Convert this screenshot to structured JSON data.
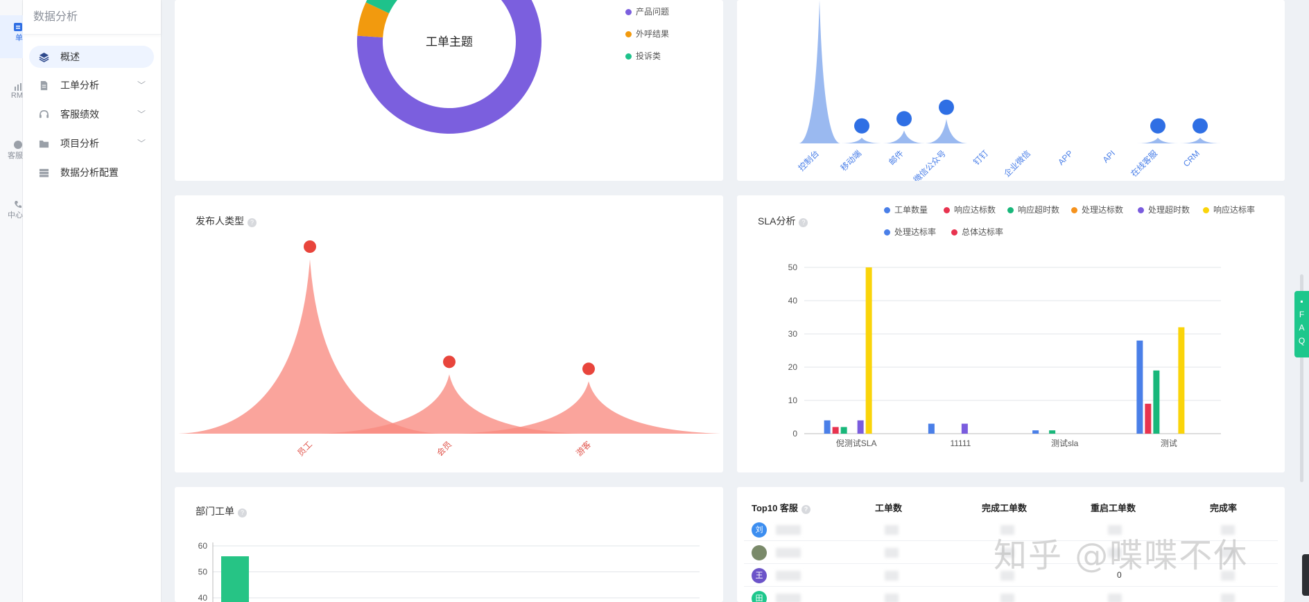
{
  "rail": {
    "items": [
      {
        "label": "单",
        "icon": "ticket-icon"
      },
      {
        "label": "RM",
        "icon": "crm-icon"
      },
      {
        "label": "客服",
        "icon": "chat-icon"
      },
      {
        "label": "中心",
        "icon": "call-center-icon"
      }
    ]
  },
  "sidebar": {
    "title": "数据分析",
    "items": [
      {
        "label": "概述"
      },
      {
        "label": "工单分析"
      },
      {
        "label": "客服绩效"
      },
      {
        "label": "项目分析"
      },
      {
        "label": "数据分析配置"
      }
    ]
  },
  "topic_card": {
    "center_label": "工单主题",
    "legend": [
      {
        "label": "产品问题",
        "color": "#7b5fde"
      },
      {
        "label": "外呼结果",
        "color": "#f29a0e"
      },
      {
        "label": "投诉类",
        "color": "#1ec28b"
      }
    ]
  },
  "channel_card": {
    "categories": [
      "控制台",
      "移动端",
      "邮件",
      "微信公众号",
      "钉钉",
      "企业微信",
      "APP",
      "API",
      "在线客服",
      "CRM"
    ]
  },
  "publisher_card": {
    "title": "发布人类型",
    "categories": [
      "员工",
      "会员",
      "游客"
    ],
    "color": "#f88a80"
  },
  "sla_card": {
    "title": "SLA分析",
    "legend": [
      {
        "label": "工单数量",
        "color": "#4a7fe8"
      },
      {
        "label": "响应达标数",
        "color": "#e8334f"
      },
      {
        "label": "响应超时数",
        "color": "#18b77a"
      },
      {
        "label": "处理达标数",
        "color": "#f5921d"
      },
      {
        "label": "处理超时数",
        "color": "#7a5cde"
      },
      {
        "label": "响应达标率",
        "color": "#fad40a"
      },
      {
        "label": "处理达标率",
        "color": "#4a7fe8"
      },
      {
        "label": "总体达标率",
        "color": "#e8334f"
      }
    ]
  },
  "dept_card": {
    "title": "部门工单"
  },
  "top10": {
    "headers": [
      "Top10 客服",
      "工单数",
      "完成工单数",
      "重启工单数",
      "完成率"
    ],
    "rows": [
      {
        "avatar": "刘",
        "color": "#3d8ef0",
        "restart": ""
      },
      {
        "avatar": "",
        "color": "#7a8a6a",
        "restart": ""
      },
      {
        "avatar": "王",
        "color": "#6c54c9",
        "restart": "0"
      },
      {
        "avatar": "田",
        "color": "#1ec78c",
        "restart": ""
      }
    ]
  },
  "watermark": "知乎 @喋喋不休",
  "faq": [
    "F",
    "A",
    "Q"
  ],
  "chart_data": [
    {
      "type": "pie",
      "labels": [
        "产品问题",
        "外呼结果",
        "投诉类"
      ],
      "values": [
        88,
        6,
        6
      ],
      "title": "工单主题"
    },
    {
      "type": "area",
      "categories": [
        "控制台",
        "移动端",
        "邮件",
        "微信公众号",
        "钉钉",
        "企业微信",
        "APP",
        "API",
        "在线客服",
        "CRM"
      ],
      "values": [
        100,
        4,
        9,
        17,
        0,
        0,
        0,
        0,
        4,
        4
      ]
    },
    {
      "type": "area",
      "title": "发布人类型",
      "categories": [
        "员工",
        "会员",
        "游客"
      ],
      "values": [
        100,
        34,
        30
      ]
    },
    {
      "type": "bar",
      "title": "SLA分析",
      "categories": [
        "倪测试SLA",
        "11111",
        "测试sla",
        "测试"
      ],
      "series": [
        {
          "name": "工单数量",
          "values": [
            4,
            3,
            1,
            28
          ]
        },
        {
          "name": "响应达标数",
          "values": [
            2,
            0,
            0,
            9
          ]
        },
        {
          "name": "响应超时数",
          "values": [
            2,
            0,
            1,
            19
          ]
        },
        {
          "name": "处理达标数",
          "values": [
            0,
            0,
            0,
            0
          ]
        },
        {
          "name": "处理超时数",
          "values": [
            4,
            3,
            0,
            0
          ]
        },
        {
          "name": "响应达标率",
          "values": [
            50,
            0,
            0,
            32
          ]
        },
        {
          "name": "处理达标率",
          "values": [
            0,
            0,
            0,
            0
          ]
        },
        {
          "name": "总体达标率",
          "values": [
            0,
            0,
            0,
            0
          ]
        }
      ],
      "yticks": [
        0,
        10,
        20,
        30,
        40,
        50
      ],
      "ylim": [
        0,
        50
      ]
    },
    {
      "type": "bar",
      "title": "部门工单",
      "categories": [
        ""
      ],
      "values": [
        56
      ],
      "yticks": [
        40,
        50,
        60
      ],
      "ylim": [
        0,
        60
      ]
    }
  ]
}
